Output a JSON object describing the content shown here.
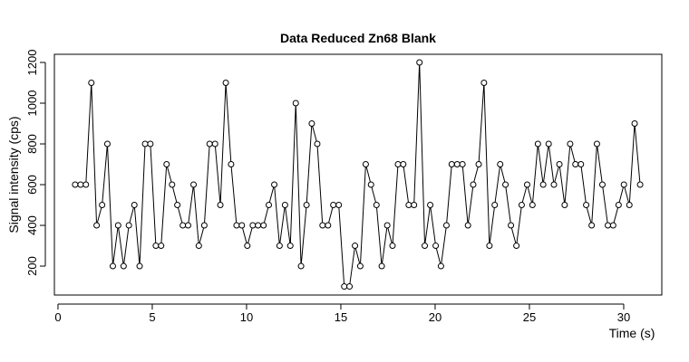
{
  "chart_data": {
    "type": "line",
    "title": "Data Reduced Zn68 Blank",
    "x_label": "Time (s)",
    "y_label": "Signal intensity (cps)",
    "x": [
      0.91,
      1.2,
      1.48,
      1.77,
      2.05,
      2.34,
      2.62,
      2.91,
      3.19,
      3.48,
      3.76,
      4.05,
      4.33,
      4.62,
      4.9,
      5.19,
      5.47,
      5.76,
      6.05,
      6.33,
      6.62,
      6.9,
      7.19,
      7.47,
      7.76,
      8.04,
      8.33,
      8.61,
      8.9,
      9.18,
      9.47,
      9.75,
      10.04,
      10.33,
      10.61,
      10.9,
      11.18,
      11.47,
      11.75,
      12.04,
      12.32,
      12.61,
      12.89,
      13.18,
      13.46,
      13.75,
      14.03,
      14.32,
      14.6,
      14.89,
      15.18,
      15.46,
      15.75,
      16.03,
      16.32,
      16.6,
      16.89,
      17.17,
      17.46,
      17.74,
      18.03,
      18.31,
      18.6,
      18.88,
      19.17,
      19.45,
      19.74,
      20.03,
      20.31,
      20.6,
      20.88,
      21.17,
      21.45,
      21.74,
      22.02,
      22.31,
      22.59,
      22.88,
      23.16,
      23.45,
      23.73,
      24.02,
      24.31,
      24.59,
      24.88,
      25.16,
      25.45,
      25.73,
      26.02,
      26.3,
      26.59,
      26.87,
      27.16,
      27.44,
      27.73,
      28.01,
      28.3,
      28.58,
      28.87,
      29.16,
      29.44,
      29.73,
      30.01,
      30.3,
      30.58,
      30.87
    ],
    "values": [
      600,
      600,
      600,
      1100,
      400,
      500,
      800,
      200,
      400,
      200,
      400,
      500,
      200,
      800,
      800,
      300,
      300,
      700,
      600,
      500,
      400,
      400,
      600,
      300,
      400,
      800,
      800,
      500,
      1100,
      700,
      400,
      400,
      300,
      400,
      400,
      400,
      500,
      600,
      300,
      500,
      300,
      1000,
      200,
      500,
      900,
      800,
      400,
      400,
      500,
      500,
      100,
      100,
      300,
      200,
      700,
      600,
      500,
      200,
      400,
      300,
      700,
      700,
      500,
      500,
      1200,
      300,
      500,
      300,
      200,
      400,
      700,
      700,
      700,
      400,
      600,
      700,
      1100,
      300,
      500,
      700,
      600,
      400,
      300,
      500,
      600,
      500,
      800,
      600,
      800,
      600,
      700,
      500,
      800,
      700,
      700,
      500,
      400,
      800,
      600,
      400,
      400,
      500,
      600,
      500,
      900,
      600
    ],
    "color": "#000000",
    "xlim": [
      -0.19,
      32.02
    ],
    "ylim": [
      58,
      1240
    ],
    "xticks": [
      0,
      5,
      10,
      15,
      20,
      25,
      30
    ],
    "yticks": [
      200,
      400,
      600,
      800,
      1000,
      1200
    ]
  }
}
